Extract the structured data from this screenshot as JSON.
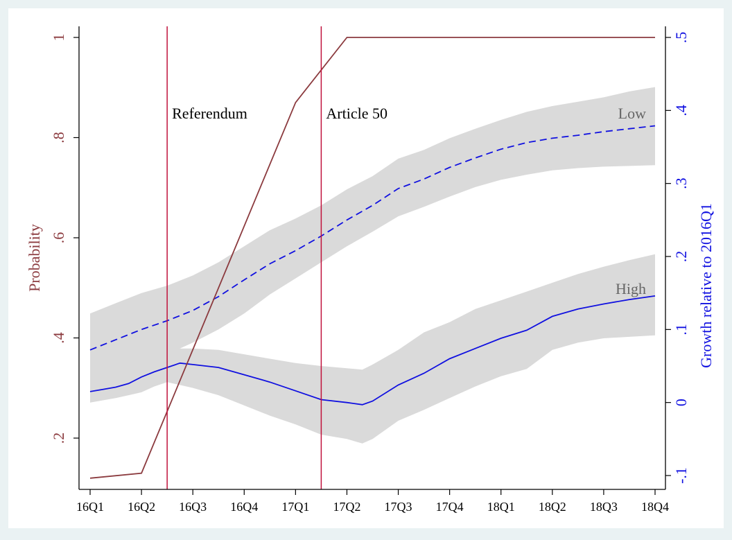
{
  "chart_data": {
    "type": "line",
    "x_tick_labels": [
      "16Q1",
      "16Q2",
      "16Q3",
      "16Q4",
      "17Q1",
      "17Q2",
      "17Q3",
      "17Q4",
      "18Q1",
      "18Q2",
      "18Q3",
      "18Q4"
    ],
    "x_range": [
      0,
      11
    ],
    "left_axis": {
      "label": "Probability",
      "range": [
        0.12,
        1.02
      ],
      "ticks": [
        0.2,
        0.4,
        0.6,
        0.8,
        1
      ],
      "tick_labels": [
        ".2",
        ".4",
        ".6",
        ".8",
        "1"
      ],
      "color": "#8b3a3e"
    },
    "right_axis": {
      "label": "Growth relative to 2016Q1",
      "range": [
        -0.1,
        0.5
      ],
      "ticks": [
        -0.1,
        0,
        0.1,
        0.2,
        0.3,
        0.4,
        0.5
      ],
      "tick_labels": [
        "-.1",
        "0",
        ".1",
        ".2",
        ".3",
        ".4",
        ".5"
      ],
      "color": "#1010e0"
    },
    "vlines": [
      {
        "x": 1.5,
        "label": "Referendum"
      },
      {
        "x": 4.5,
        "label": "Article 50"
      }
    ],
    "series": [
      {
        "key": "probability",
        "axis": "left",
        "style": "solid",
        "color": "#8b3a3e",
        "x": [
          0,
          1,
          4,
          5,
          11
        ],
        "y": [
          0.12,
          0.13,
          0.87,
          1.0,
          1.0
        ]
      },
      {
        "key": "low",
        "name": "Low",
        "axis": "right",
        "style": "dashed",
        "color": "#1010e0",
        "x": [
          0,
          0.5,
          1,
          1.5,
          2,
          2.5,
          3,
          3.5,
          4,
          4.5,
          5,
          5.5,
          6,
          6.5,
          7,
          7.5,
          8,
          8.5,
          9,
          9.5,
          10,
          10.5,
          11
        ],
        "y": [
          0.072,
          0.086,
          0.1,
          0.112,
          0.126,
          0.145,
          0.168,
          0.19,
          0.208,
          0.228,
          0.25,
          0.27,
          0.293,
          0.306,
          0.322,
          0.335,
          0.347,
          0.356,
          0.362,
          0.366,
          0.371,
          0.375,
          0.379
        ],
        "band_lower": [
          0.022,
          0.036,
          0.052,
          0.066,
          0.082,
          0.1,
          0.122,
          0.148,
          0.17,
          0.192,
          0.214,
          0.234,
          0.255,
          0.268,
          0.282,
          0.295,
          0.305,
          0.312,
          0.318,
          0.321,
          0.323,
          0.324,
          0.325
        ],
        "band_upper": [
          0.122,
          0.136,
          0.15,
          0.16,
          0.174,
          0.192,
          0.214,
          0.236,
          0.252,
          0.27,
          0.292,
          0.31,
          0.334,
          0.346,
          0.362,
          0.375,
          0.387,
          0.398,
          0.406,
          0.412,
          0.418,
          0.426,
          0.432
        ]
      },
      {
        "key": "high",
        "name": "High",
        "axis": "right",
        "style": "solid",
        "color": "#1010e0",
        "x": [
          0,
          0.25,
          0.5,
          0.75,
          1,
          1.25,
          1.5,
          1.75,
          2,
          2.5,
          3,
          3.5,
          4,
          4.5,
          5,
          5.3,
          5.5,
          6,
          6.5,
          7,
          7.5,
          8,
          8.5,
          9,
          9.5,
          10,
          10.5,
          11
        ],
        "y": [
          0.015,
          0.018,
          0.021,
          0.026,
          0.035,
          0.042,
          0.048,
          0.054,
          0.052,
          0.048,
          0.038,
          0.028,
          0.016,
          0.004,
          0.0,
          -0.003,
          0.002,
          0.024,
          0.04,
          0.06,
          0.074,
          0.088,
          0.099,
          0.118,
          0.128,
          0.135,
          0.141,
          0.146
        ],
        "band_lower": [
          0.0,
          0.003,
          0.006,
          0.01,
          0.014,
          0.022,
          0.028,
          0.024,
          0.02,
          0.01,
          -0.004,
          -0.018,
          -0.03,
          -0.044,
          -0.05,
          -0.056,
          -0.05,
          -0.025,
          -0.01,
          0.006,
          0.022,
          0.036,
          0.046,
          0.072,
          0.082,
          0.088,
          0.09,
          0.092
        ],
        "band_upper": [
          0.035,
          0.038,
          0.044,
          0.05,
          0.058,
          0.066,
          0.072,
          0.074,
          0.074,
          0.072,
          0.066,
          0.06,
          0.054,
          0.05,
          0.047,
          0.045,
          0.052,
          0.072,
          0.096,
          0.11,
          0.128,
          0.14,
          0.152,
          0.164,
          0.176,
          0.186,
          0.195,
          0.203
        ]
      }
    ],
    "annotations": [
      {
        "text": "Low",
        "series": "low"
      },
      {
        "text": "High",
        "series": "high"
      }
    ],
    "grid": false,
    "legend": "none"
  }
}
